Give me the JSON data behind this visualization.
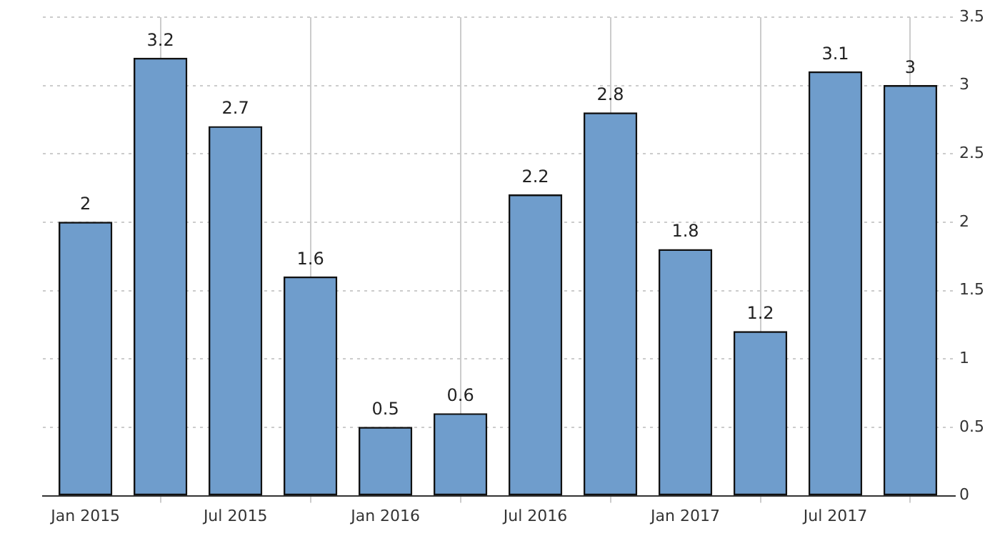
{
  "chart_data": {
    "type": "bar",
    "x": [
      "2015-01",
      "2015-04",
      "2015-07",
      "2015-10",
      "2016-01",
      "2016-04",
      "2016-07",
      "2016-10",
      "2017-01",
      "2017-04",
      "2017-07",
      "2017-10"
    ],
    "values": [
      2,
      3.2,
      2.7,
      1.6,
      0.5,
      0.6,
      2.2,
      2.8,
      1.8,
      1.2,
      3.1,
      3
    ],
    "color": "#6f9dcc",
    "xlim": [
      "2014-11-10",
      "2017-11-25"
    ],
    "xticks": [
      {
        "value": "2015-01",
        "label": "Jan 2015"
      },
      {
        "value": "2015-07",
        "label": "Jul 2015"
      },
      {
        "value": "2016-01",
        "label": "Jan 2016"
      },
      {
        "value": "2016-07",
        "label": "Jul 2016"
      },
      {
        "value": "2017-01",
        "label": "Jan 2017"
      },
      {
        "value": "2017-07",
        "label": "Jul 2017"
      }
    ],
    "ylim": [
      0,
      3.5
    ],
    "yticks": [
      0,
      0.5,
      1,
      1.5,
      2,
      2.5,
      3,
      3.5
    ],
    "grid": true,
    "data_labels": true
  }
}
